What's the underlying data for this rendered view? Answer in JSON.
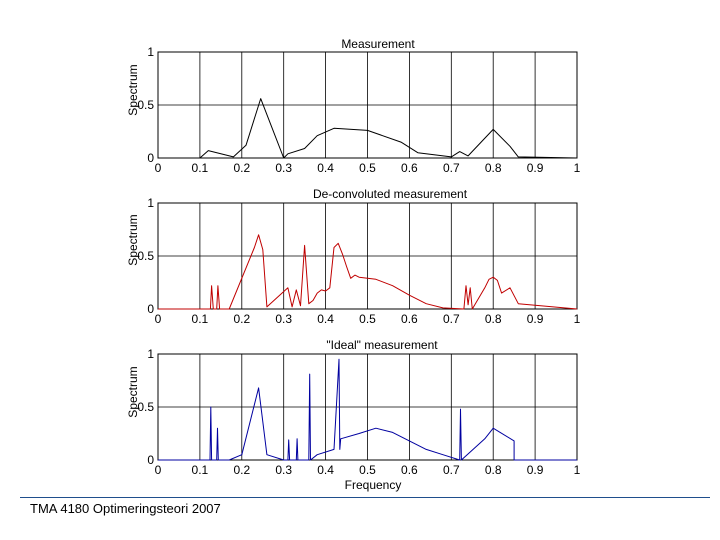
{
  "footer": {
    "text": "TMA 4180 Optimeringsteori 2007",
    "line_color": "#1f4e8c"
  },
  "chart_data": [
    {
      "type": "line",
      "title": "Measurement",
      "xlabel": "",
      "ylabel": "Spectrum",
      "xlim": [
        0,
        1
      ],
      "ylim": [
        0,
        1
      ],
      "xticks": [
        "0",
        "0.1",
        "0.2",
        "0.3",
        "0.4",
        "0.5",
        "0.6",
        "0.7",
        "0.8",
        "0.9",
        "1"
      ],
      "yticks": [
        "0",
        "0.5",
        "1"
      ],
      "grid": true,
      "color": "#000000",
      "series": [
        {
          "x": [
            0,
            0.1,
            0.12,
            0.18,
            0.21,
            0.245,
            0.3,
            0.31,
            0.35,
            0.38,
            0.42,
            0.5,
            0.58,
            0.62,
            0.7,
            0.72,
            0.74,
            0.8,
            0.84,
            0.86,
            1
          ],
          "y": [
            0,
            0,
            0.07,
            0.01,
            0.12,
            0.56,
            0,
            0.04,
            0.09,
            0.21,
            0.28,
            0.26,
            0.15,
            0.05,
            0.01,
            0.06,
            0.02,
            0.27,
            0.11,
            0.01,
            0
          ]
        }
      ]
    },
    {
      "type": "line",
      "title": "De-convoluted measurement",
      "xlabel": "",
      "ylabel": "Spectrum",
      "xlim": [
        0,
        1
      ],
      "ylim": [
        0,
        1
      ],
      "xticks": [
        "0",
        "0.1",
        "0.2",
        "0.3",
        "0.4",
        "0.5",
        "0.6",
        "0.7",
        "0.8",
        "0.9",
        "1"
      ],
      "yticks": [
        "0",
        "0.5",
        "1"
      ],
      "grid": true,
      "color": "#c00000",
      "series": [
        {
          "x": [
            0,
            0.125,
            0.128,
            0.132,
            0.14,
            0.143,
            0.147,
            0.17,
            0.23,
            0.24,
            0.25,
            0.26,
            0.31,
            0.32,
            0.33,
            0.34,
            0.35,
            0.36,
            0.37,
            0.38,
            0.39,
            0.4,
            0.41,
            0.42,
            0.43,
            0.44,
            0.45,
            0.46,
            0.47,
            0.48,
            0.52,
            0.56,
            0.6,
            0.64,
            0.68,
            0.73,
            0.735,
            0.74,
            0.745,
            0.75,
            0.78,
            0.79,
            0.8,
            0.81,
            0.82,
            0.84,
            0.86,
            1
          ],
          "y": [
            0,
            0,
            0.22,
            0,
            0,
            0.22,
            0,
            0,
            0.58,
            0.7,
            0.56,
            0.02,
            0.2,
            0.02,
            0.18,
            0.03,
            0.6,
            0.05,
            0.08,
            0.15,
            0.18,
            0.17,
            0.2,
            0.58,
            0.62,
            0.52,
            0.4,
            0.29,
            0.32,
            0.3,
            0.28,
            0.22,
            0.13,
            0.05,
            0.01,
            0,
            0.22,
            0.04,
            0.2,
            0,
            0.2,
            0.28,
            0.3,
            0.27,
            0.15,
            0.2,
            0.05,
            0
          ]
        }
      ]
    },
    {
      "type": "line",
      "title": "\"Ideal\" measurement",
      "xlabel": "Frequency",
      "ylabel": "Spectrum",
      "xlim": [
        0,
        1
      ],
      "ylim": [
        0,
        1
      ],
      "xticks": [
        "0",
        "0.1",
        "0.2",
        "0.3",
        "0.4",
        "0.5",
        "0.6",
        "0.7",
        "0.8",
        "0.9",
        "1"
      ],
      "yticks": [
        "0",
        "0.5",
        "1"
      ],
      "grid": true,
      "color": "#0000a0",
      "series": [
        {
          "x": [
            0,
            0.124,
            0.126,
            0.128,
            0.14,
            0.142,
            0.144,
            0.17,
            0.2,
            0.24,
            0.26,
            0.3,
            0.31,
            0.312,
            0.314,
            0.33,
            0.332,
            0.334,
            0.36,
            0.362,
            0.364,
            0.38,
            0.42,
            0.432,
            0.434,
            0.436,
            0.48,
            0.52,
            0.56,
            0.6,
            0.64,
            0.68,
            0.72,
            0.722,
            0.724,
            0.78,
            0.8,
            0.8,
            0.85,
            0.85,
            1
          ],
          "y": [
            0,
            0,
            0.5,
            0,
            0,
            0.3,
            0,
            0,
            0.05,
            0.68,
            0.05,
            0,
            0,
            0.19,
            0,
            0,
            0.2,
            0,
            0,
            0.81,
            0,
            0.05,
            0.1,
            0.95,
            0.1,
            0.2,
            0.25,
            0.3,
            0.26,
            0.18,
            0.1,
            0.05,
            0,
            0.48,
            0,
            0.2,
            0.3,
            0.3,
            0.18,
            0,
            0
          ]
        }
      ]
    }
  ]
}
